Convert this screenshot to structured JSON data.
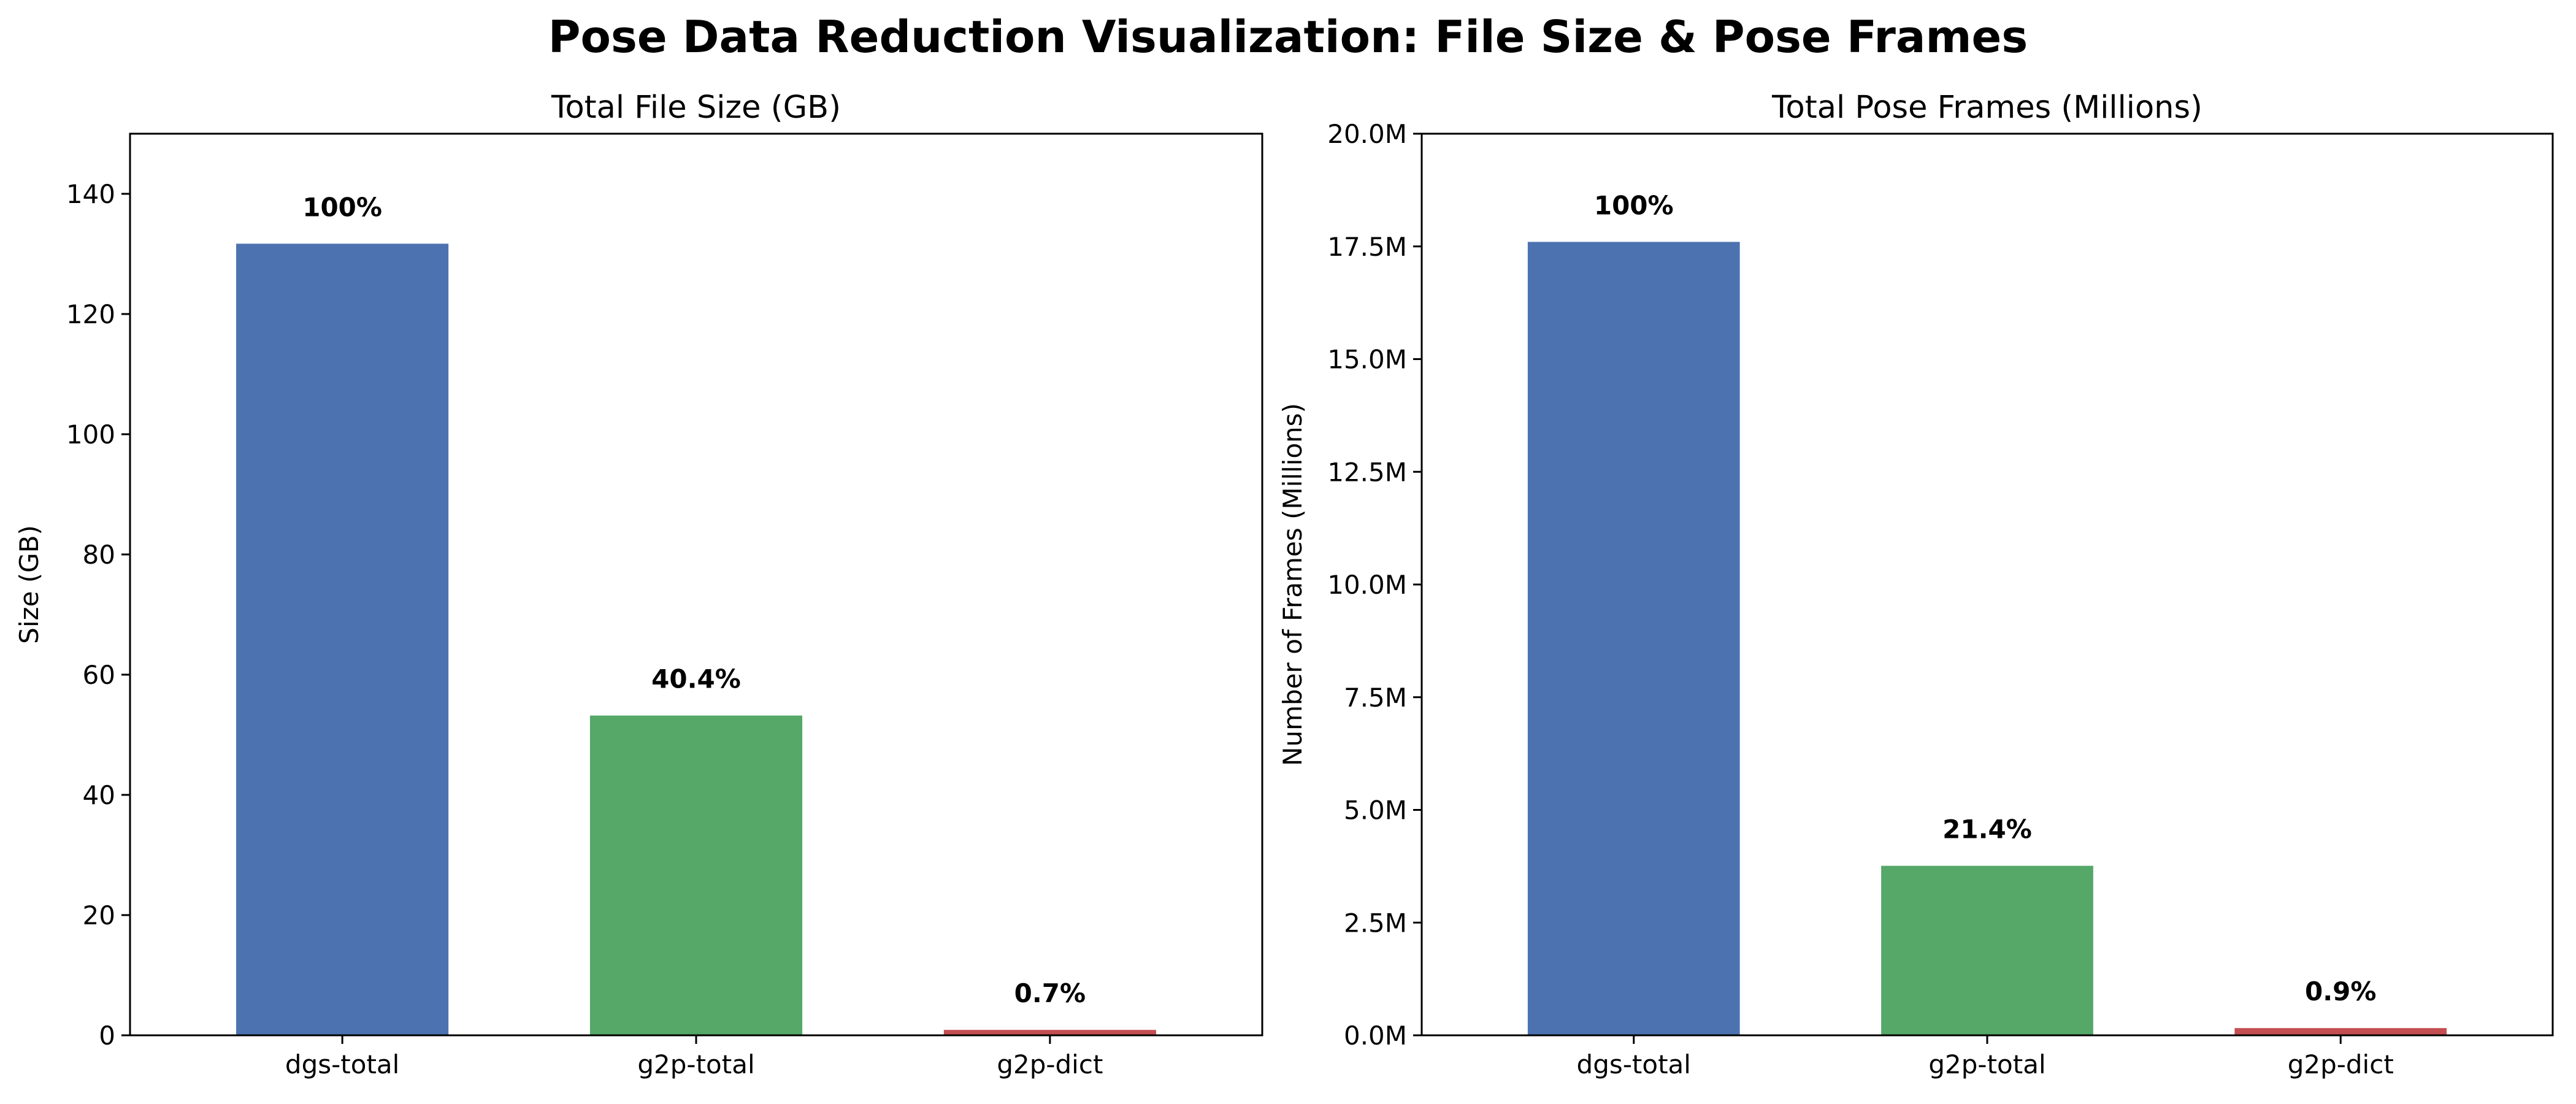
{
  "suptitle": "Pose Data Reduction Visualization: File Size & Pose Frames",
  "chart_data": [
    {
      "type": "bar",
      "title": "Total File Size (GB)",
      "xlabel": "",
      "ylabel": "Size (GB)",
      "categories": [
        "dgs-total",
        "g2p-total",
        "g2p-dict"
      ],
      "values": [
        131.7,
        53.2,
        0.9
      ],
      "bar_labels": [
        "100%",
        "40.4%",
        "0.7%"
      ],
      "colors": [
        "#4c72b0",
        "#55a868",
        "#c44e52"
      ],
      "ylim": [
        0,
        150
      ],
      "yticks": [
        0,
        20,
        40,
        60,
        80,
        100,
        120,
        140
      ],
      "ytick_labels": [
        "0",
        "20",
        "40",
        "60",
        "80",
        "100",
        "120",
        "140"
      ],
      "grid": false,
      "legend": "none"
    },
    {
      "type": "bar",
      "title": "Total Pose Frames (Millions)",
      "xlabel": "",
      "ylabel": "Number of Frames (Millions)",
      "categories": [
        "dgs-total",
        "g2p-total",
        "g2p-dict"
      ],
      "values": [
        17.6,
        3.76,
        0.16
      ],
      "bar_labels": [
        "100%",
        "21.4%",
        "0.9%"
      ],
      "colors": [
        "#4c72b0",
        "#55a868",
        "#c44e52"
      ],
      "ylim": [
        0,
        20
      ],
      "yticks": [
        0,
        2.5,
        5,
        7.5,
        10,
        12.5,
        15,
        17.5,
        20
      ],
      "ytick_labels": [
        "0.0M",
        "2.5M",
        "5.0M",
        "7.5M",
        "10.0M",
        "12.5M",
        "15.0M",
        "17.5M",
        "20.0M"
      ],
      "grid": false,
      "legend": "none"
    }
  ]
}
